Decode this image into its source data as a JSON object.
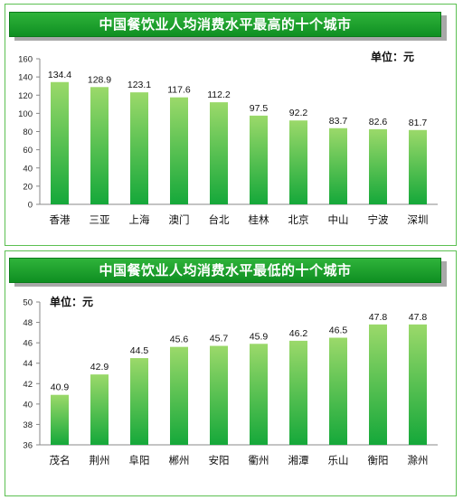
{
  "colors": {
    "bar_top": "#9bd96a",
    "bar_bottom": "#15a83a",
    "banner": "#1fa02e",
    "frame": "#5cc052"
  },
  "chart_data": [
    {
      "type": "bar",
      "title": "中国餐饮业人均消费水平最高的十个城市",
      "unit_label": "单位：元",
      "categories": [
        "香港",
        "三亚",
        "上海",
        "澳门",
        "台北",
        "桂林",
        "北京",
        "中山",
        "宁波",
        "深圳"
      ],
      "values": [
        134.4,
        128.9,
        123.1,
        117.6,
        112.2,
        97.5,
        92.2,
        83.7,
        82.6,
        81.7
      ],
      "value_labels": [
        "134.4",
        "128.9",
        "123.1",
        "117.6",
        "112.2",
        "97.5",
        "92.2",
        "83.7",
        "82.6",
        "81.7"
      ],
      "ylim": [
        0,
        160
      ],
      "yticks": [
        "0",
        "20",
        "40",
        "60",
        "80",
        "100",
        "120",
        "140",
        "160"
      ],
      "grid": false,
      "legend": "none"
    },
    {
      "type": "bar",
      "title": "中国餐饮业人均消费水平最低的十个城市",
      "unit_label": "单位：元",
      "categories": [
        "茂名",
        "荆州",
        "阜阳",
        "郴州",
        "安阳",
        "衢州",
        "湘潭",
        "乐山",
        "衡阳",
        "滁州"
      ],
      "values": [
        40.9,
        42.9,
        44.5,
        45.6,
        45.7,
        45.9,
        46.2,
        46.5,
        47.8,
        47.8
      ],
      "value_labels": [
        "40.9",
        "42.9",
        "44.5",
        "45.6",
        "45.7",
        "45.9",
        "46.2",
        "46.5",
        "47.8",
        "47.8"
      ],
      "ylim": [
        36,
        50
      ],
      "yticks": [
        "36",
        "38",
        "40",
        "42",
        "44",
        "46",
        "48",
        "50"
      ],
      "grid": false,
      "legend": "none"
    }
  ]
}
